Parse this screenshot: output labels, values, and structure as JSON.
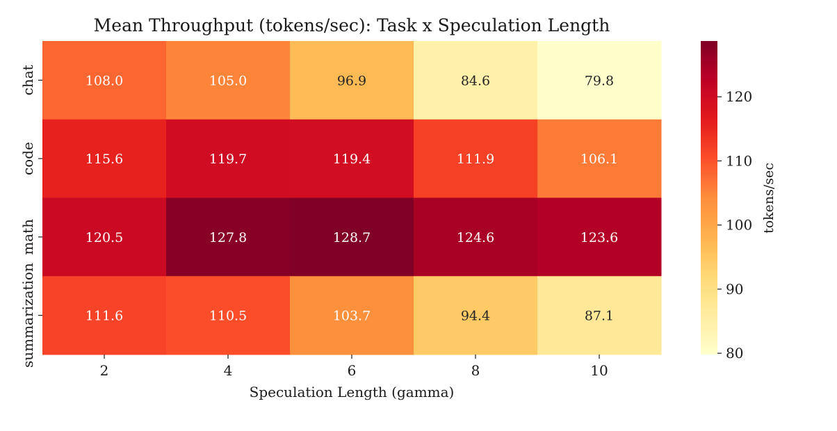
{
  "chart_data": {
    "type": "heatmap",
    "title": "Mean Throughput (tokens/sec): Task x Speculation Length",
    "xlabel": "Speculation Length (gamma)",
    "ylabel": "",
    "x_categories": [
      "2",
      "4",
      "6",
      "8",
      "10"
    ],
    "y_categories": [
      "chat",
      "code",
      "math",
      "summarization"
    ],
    "values": [
      [
        108.0,
        105.0,
        96.9,
        84.6,
        79.8
      ],
      [
        115.6,
        119.7,
        119.4,
        111.9,
        106.1
      ],
      [
        120.5,
        127.8,
        128.7,
        124.6,
        123.6
      ],
      [
        111.6,
        110.5,
        103.7,
        94.4,
        87.1
      ]
    ],
    "value_format": "1 decimal",
    "colormap": "YlOrRd",
    "colorbar": {
      "label": "tokens/sec",
      "min": 79.8,
      "max": 128.7,
      "ticks": [
        80,
        90,
        100,
        110,
        120
      ]
    },
    "grid": false,
    "legend": "colorbar-right"
  }
}
